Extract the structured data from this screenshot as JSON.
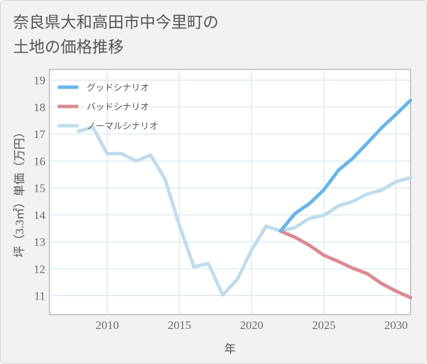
{
  "title": {
    "line1": "奈良県大和高田市中今里町の",
    "line2": "土地の価格推移"
  },
  "chart_data": {
    "type": "line",
    "xlabel": "年",
    "ylabel": "坪（3.3㎡）単価（万円）",
    "xlim": [
      2006,
      2031
    ],
    "ylim": [
      10.3,
      19.4
    ],
    "x_ticks": [
      2010,
      2015,
      2020,
      2025,
      2030
    ],
    "y_ticks": [
      11,
      12,
      13,
      14,
      15,
      16,
      17,
      18,
      19
    ],
    "grid": true,
    "legend_position": "top-left",
    "series": [
      {
        "name": "グッドシナリオ",
        "color": "#67b6ea",
        "x": [
          2022,
          2023,
          2024,
          2025,
          2026,
          2027,
          2028,
          2029,
          2030,
          2031
        ],
        "y": [
          13.4,
          14.05,
          14.42,
          14.93,
          15.65,
          16.1,
          16.66,
          17.23,
          17.73,
          18.25
        ]
      },
      {
        "name": "バッドシナリオ",
        "color": "#db8a92",
        "x": [
          2022,
          2023,
          2024,
          2025,
          2026,
          2027,
          2028,
          2029,
          2030,
          2031
        ],
        "y": [
          13.4,
          13.17,
          12.87,
          12.5,
          12.27,
          12.02,
          11.82,
          11.45,
          11.17,
          10.93
        ]
      },
      {
        "name": "ノーマルシナリオ",
        "color": "#bfdcec",
        "x": [
          2008,
          2009,
          2010,
          2011,
          2012,
          2013,
          2014,
          2015,
          2016,
          2017,
          2018,
          2019,
          2020,
          2021,
          2022,
          2023,
          2024,
          2025,
          2026,
          2027,
          2028,
          2029,
          2030,
          2031
        ],
        "y": [
          17.1,
          17.25,
          16.27,
          16.27,
          16.0,
          16.22,
          15.33,
          13.6,
          12.07,
          12.2,
          11.03,
          11.6,
          12.7,
          13.58,
          13.4,
          13.53,
          13.87,
          13.98,
          14.33,
          14.5,
          14.77,
          14.92,
          15.23,
          15.38
        ]
      }
    ]
  }
}
